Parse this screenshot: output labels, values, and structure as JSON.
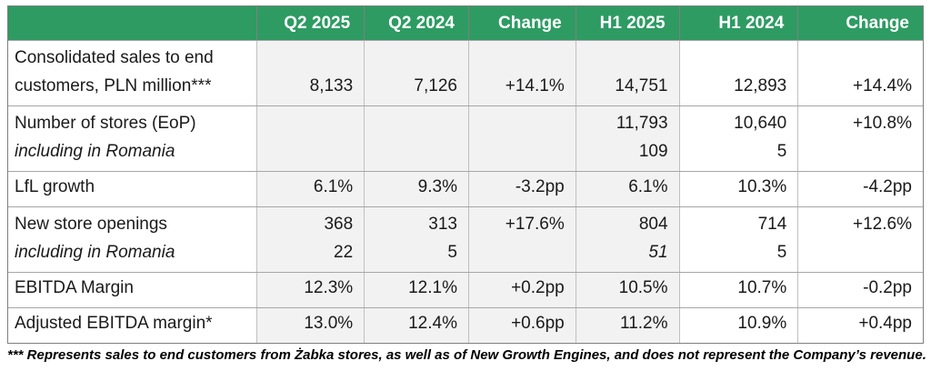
{
  "colors": {
    "header_green": "#2e9b63",
    "shaded_column_bg": "#f2f2f2",
    "plain_column_bg": "#ffffff",
    "header_text": "#ffffff"
  },
  "table": {
    "columns": [
      "",
      "Q2 2025",
      "Q2 2024",
      "Change",
      "H1 2025",
      "H1 2024",
      "Change"
    ],
    "shaded_columns": [
      1,
      2,
      3,
      4
    ],
    "rows": [
      {
        "name": "row-consolidated-sales",
        "type": "double",
        "label": [
          {
            "t": "Consolidated sales to end"
          },
          {
            "t": "customers, PLN million***"
          }
        ],
        "cells": [
          [
            {
              "t": ""
            },
            {
              "t": "8,133"
            }
          ],
          [
            {
              "t": ""
            },
            {
              "t": "7,126"
            }
          ],
          [
            {
              "t": ""
            },
            {
              "t": "+14.1%"
            }
          ],
          [
            {
              "t": ""
            },
            {
              "t": "14,751"
            }
          ],
          [
            {
              "t": ""
            },
            {
              "t": "12,893"
            }
          ],
          [
            {
              "t": ""
            },
            {
              "t": "+14.4%"
            }
          ]
        ]
      },
      {
        "name": "row-number-of-stores",
        "type": "double",
        "label": [
          {
            "t": "Number of stores (EoP)"
          },
          {
            "t": "including in Romania",
            "i": true
          }
        ],
        "cells": [
          [
            {
              "t": ""
            },
            {
              "t": ""
            }
          ],
          [
            {
              "t": ""
            },
            {
              "t": ""
            }
          ],
          [
            {
              "t": ""
            },
            {
              "t": ""
            }
          ],
          [
            {
              "t": "11,793"
            },
            {
              "t": "109"
            }
          ],
          [
            {
              "t": "10,640"
            },
            {
              "t": "5"
            }
          ],
          [
            {
              "t": "+10.8%"
            },
            {
              "t": ""
            }
          ]
        ]
      },
      {
        "name": "row-lfl-growth",
        "type": "single",
        "label": [
          {
            "t": "LfL growth"
          }
        ],
        "cells": [
          [
            {
              "t": "6.1%"
            }
          ],
          [
            {
              "t": "9.3%"
            }
          ],
          [
            {
              "t": "-3.2pp"
            }
          ],
          [
            {
              "t": "6.1%"
            }
          ],
          [
            {
              "t": "10.3%"
            }
          ],
          [
            {
              "t": "-4.2pp"
            }
          ]
        ]
      },
      {
        "name": "row-new-store-openings",
        "type": "double",
        "label": [
          {
            "t": "New store openings"
          },
          {
            "t": "including in Romania",
            "i": true
          }
        ],
        "cells": [
          [
            {
              "t": "368"
            },
            {
              "t": "22"
            }
          ],
          [
            {
              "t": "313"
            },
            {
              "t": "5"
            }
          ],
          [
            {
              "t": "+17.6%"
            },
            {
              "t": ""
            }
          ],
          [
            {
              "t": "804"
            },
            {
              "t": "51",
              "i": true
            }
          ],
          [
            {
              "t": "714"
            },
            {
              "t": "5"
            }
          ],
          [
            {
              "t": "+12.6%"
            },
            {
              "t": ""
            }
          ]
        ]
      },
      {
        "name": "row-ebitda-margin",
        "type": "single",
        "label": [
          {
            "t": "EBITDA Margin"
          }
        ],
        "cells": [
          [
            {
              "t": "12.3%"
            }
          ],
          [
            {
              "t": "12.1%"
            }
          ],
          [
            {
              "t": "+0.2pp"
            }
          ],
          [
            {
              "t": "10.5%"
            }
          ],
          [
            {
              "t": "10.7%"
            }
          ],
          [
            {
              "t": "-0.2pp"
            }
          ]
        ]
      },
      {
        "name": "row-adjusted-ebitda-margin",
        "type": "single",
        "label": [
          {
            "t": "Adjusted EBITDA margin*"
          }
        ],
        "cells": [
          [
            {
              "t": "13.0%"
            }
          ],
          [
            {
              "t": "12.4%"
            }
          ],
          [
            {
              "t": "+0.6pp"
            }
          ],
          [
            {
              "t": "11.2%"
            }
          ],
          [
            {
              "t": "10.9%"
            }
          ],
          [
            {
              "t": "+0.4pp"
            }
          ]
        ]
      }
    ]
  },
  "footnote": "*** Represents sales to end customers from Żabka stores, as well as of New Growth Engines, and does not represent the Company’s revenue."
}
